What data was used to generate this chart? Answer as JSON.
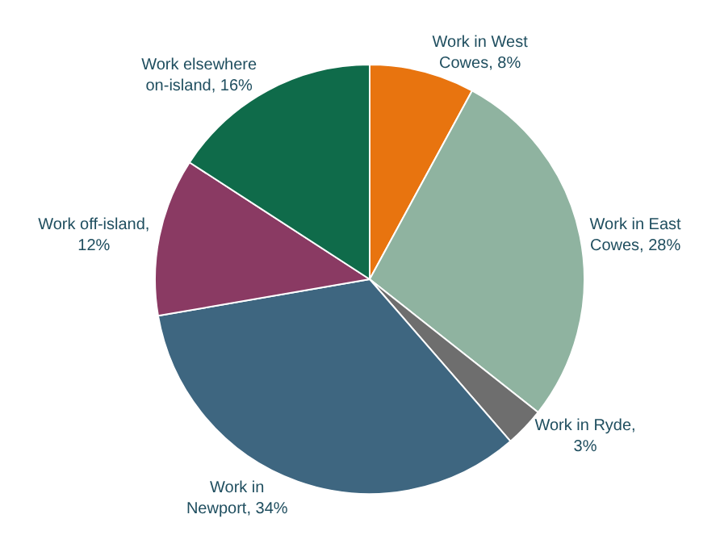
{
  "chart_data": {
    "type": "pie",
    "categories": [
      "Work in West\nCowes, 8%",
      "Work in East\nCowes, 28%",
      "Work in Ryde,\n3%",
      "Work in\nNewport, 34%",
      "Work off-island,\n12%",
      "Work elsewhere\non-island, 16%"
    ],
    "values": [
      8,
      28,
      3,
      34,
      12,
      16
    ],
    "colors": [
      "#e8740f",
      "#8fb3a0",
      "#6e6e6e",
      "#3e6680",
      "#8a3a63",
      "#0f6b4a"
    ],
    "legend": false
  }
}
